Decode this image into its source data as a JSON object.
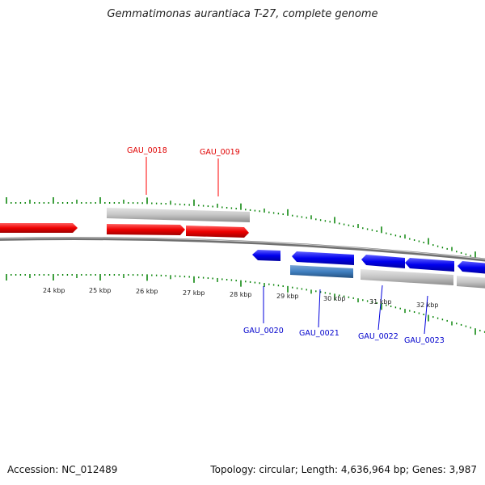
{
  "title": "Gemmatimonas aurantiaca T-27, complete genome",
  "footer": {
    "accession": "Accession: NC_012489",
    "summary": "Topology: circular; Length: 4,636,964 bp; Genes: 3,987"
  },
  "colors": {
    "forward_gene": "#ff1a1a",
    "reverse_gene": "#1a1aff",
    "pseudo_gene": "#c0c0c0",
    "rna_gene": "#3c78b4",
    "tick": "#008000",
    "backbone": "#808080"
  },
  "scale_labels": [
    "24 kbp",
    "25 kbp",
    "26 kbp",
    "27 kbp",
    "28 kbp",
    "29 kbp",
    "30 kbp",
    "31 kbp",
    "32 kbp"
  ],
  "gene_labels": {
    "forward": [
      "GAU_0018",
      "GAU_0019"
    ],
    "reverse": [
      "GAU_0020",
      "GAU_0021",
      "GAU_0022",
      "GAU_0023"
    ]
  }
}
